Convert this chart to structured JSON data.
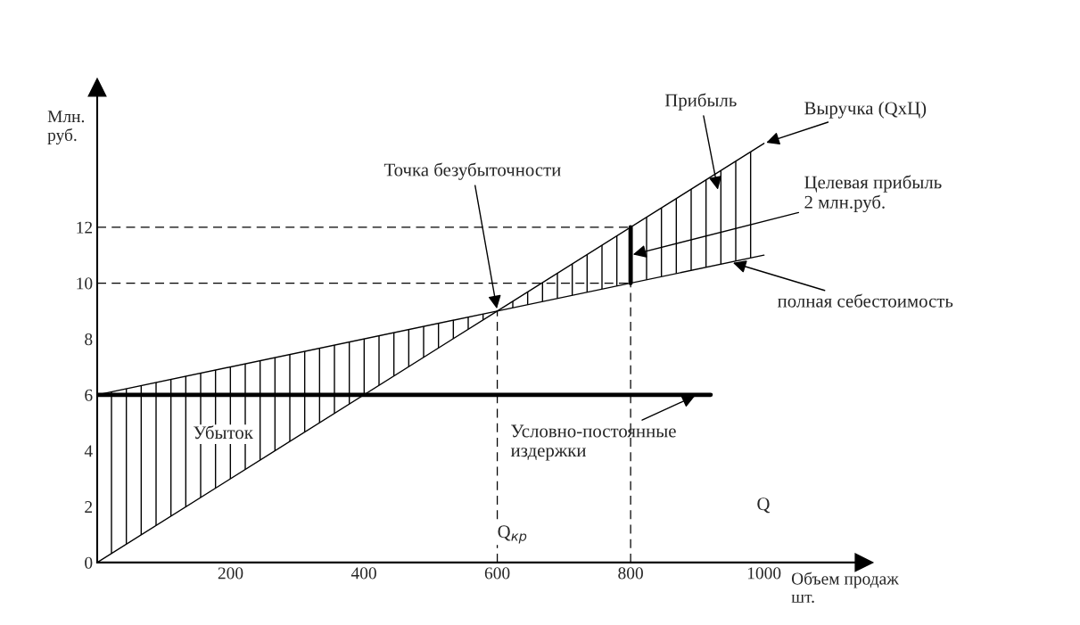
{
  "chart_data": {
    "type": "line",
    "xlabel": "Объем продаж\nшт.",
    "ylabel": "Млн.\nруб.",
    "series": [
      {
        "color": "#000000",
        "x": [
          0,
          600,
          1000
        ],
        "values": [
          6,
          9,
          11
        ],
        "lower": [
          0,
          9,
          11
        ],
        "upper": [
          6,
          9,
          15
        ]
      },
      {
        "color": "#000000",
        "x": [
          0,
          600,
          1000
        ],
        "values": [
          0,
          9,
          15
        ]
      },
      {
        "color": "#000000",
        "x": [
          0,
          920
        ],
        "values": [
          6,
          6
        ]
      },
      {
        "color": "#000000",
        "x": [
          800,
          800
        ],
        "values": [
          10,
          12
        ]
      },
      {
        "color": "#000000",
        "line_style": "dashed",
        "x": [
          0,
          800
        ],
        "values": [
          12,
          12
        ]
      },
      {
        "color": "#000000",
        "line_style": "dashed",
        "x": [
          0,
          800
        ],
        "values": [
          10,
          10
        ]
      },
      {
        "color": "#000000",
        "line_style": "dashed",
        "x": [
          600,
          600
        ],
        "values": [
          0,
          9
        ]
      },
      {
        "color": "#000000",
        "line_style": "dashed",
        "x": [
          800,
          800
        ],
        "values": [
          0,
          10
        ]
      }
    ],
    "annotations": [
      {
        "text": "Точка безубыточности",
        "x": 600,
        "y": 9
      },
      "Прибыль",
      {
        "text": "Выручка (QxЦ)",
        "x": 1000,
        "y": 15
      },
      {
        "text": "Целевая прибыль\n2 млн.руб.",
        "x": 800,
        "y": 11
      },
      {
        "text": "полная себестоимость",
        "x": 950,
        "y": 10.75
      },
      {
        "text": "Условно-постоянные\nиздержки",
        "x": 900,
        "y": 6
      },
      "Убыток",
      {
        "text": "Q$_{кр}$",
        "x": 600,
        "y": 1
      },
      "Q"
    ],
    "xlim": [
      0,
      1150
    ],
    "ylim": [
      0,
      17
    ],
    "xticks": [
      200,
      400,
      600,
      800,
      1000
    ],
    "yticks": [
      0,
      2,
      4,
      6,
      8,
      10,
      12
    ],
    "grid": false
  }
}
